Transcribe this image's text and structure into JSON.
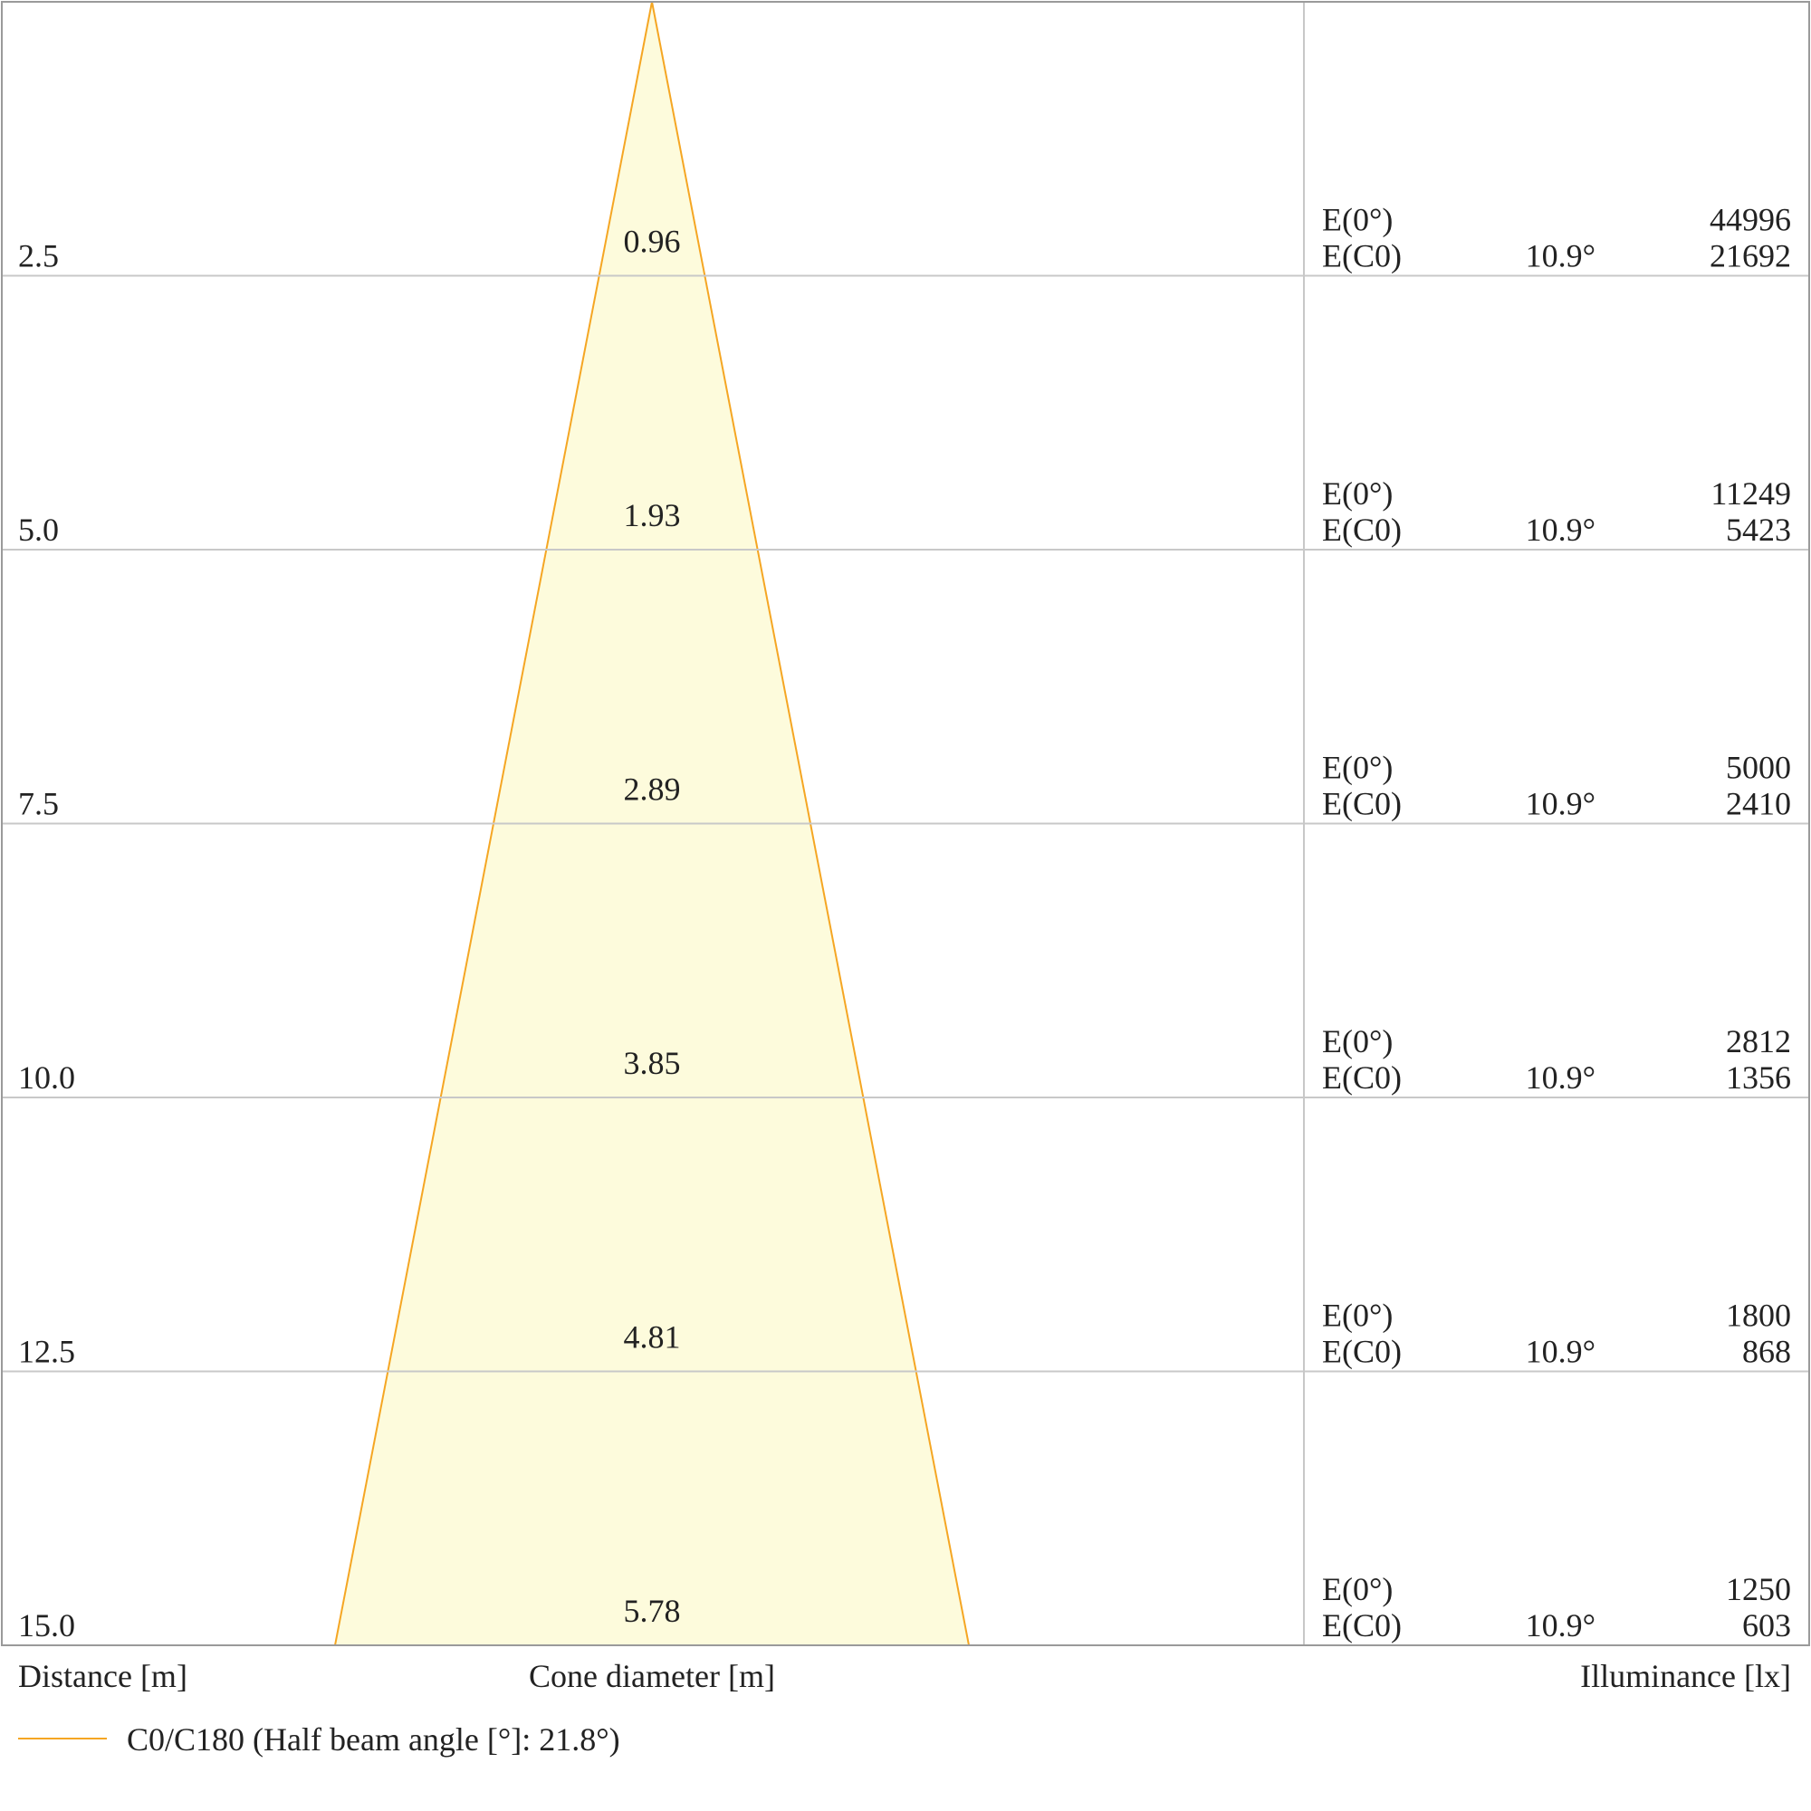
{
  "chart_data": {
    "type": "area",
    "x_label": "Distance [m]",
    "cone_label": "Cone diameter [m]",
    "illuminance_label": "Illuminance [lx]",
    "legend": "C0/C180 (Half beam angle [°]: 21.8°)",
    "legend_color": "#f5a623",
    "cone_fill": "#fdfbdc",
    "grid_color": "#c8c8c8",
    "frame_color": "#9a9a9a",
    "max_distance": 15,
    "rows": [
      {
        "distance": "2.5",
        "diameter": "0.96",
        "e0_label": "E(0°)",
        "ec0_label": "E(C0)",
        "angle": "10.9°",
        "e0": "44996",
        "ec0": "21692"
      },
      {
        "distance": "5.0",
        "diameter": "1.93",
        "e0_label": "E(0°)",
        "ec0_label": "E(C0)",
        "angle": "10.9°",
        "e0": "11249",
        "ec0": "5423"
      },
      {
        "distance": "7.5",
        "diameter": "2.89",
        "e0_label": "E(0°)",
        "ec0_label": "E(C0)",
        "angle": "10.9°",
        "e0": "5000",
        "ec0": "2410"
      },
      {
        "distance": "10.0",
        "diameter": "3.85",
        "e0_label": "E(0°)",
        "ec0_label": "E(C0)",
        "angle": "10.9°",
        "e0": "2812",
        "ec0": "1356"
      },
      {
        "distance": "12.5",
        "diameter": "4.81",
        "e0_label": "E(0°)",
        "ec0_label": "E(C0)",
        "angle": "10.9°",
        "e0": "1800",
        "ec0": "868"
      },
      {
        "distance": "15.0",
        "diameter": "5.78",
        "e0_label": "E(0°)",
        "ec0_label": "E(C0)",
        "angle": "10.9°",
        "e0": "1250",
        "ec0": "603"
      }
    ]
  }
}
